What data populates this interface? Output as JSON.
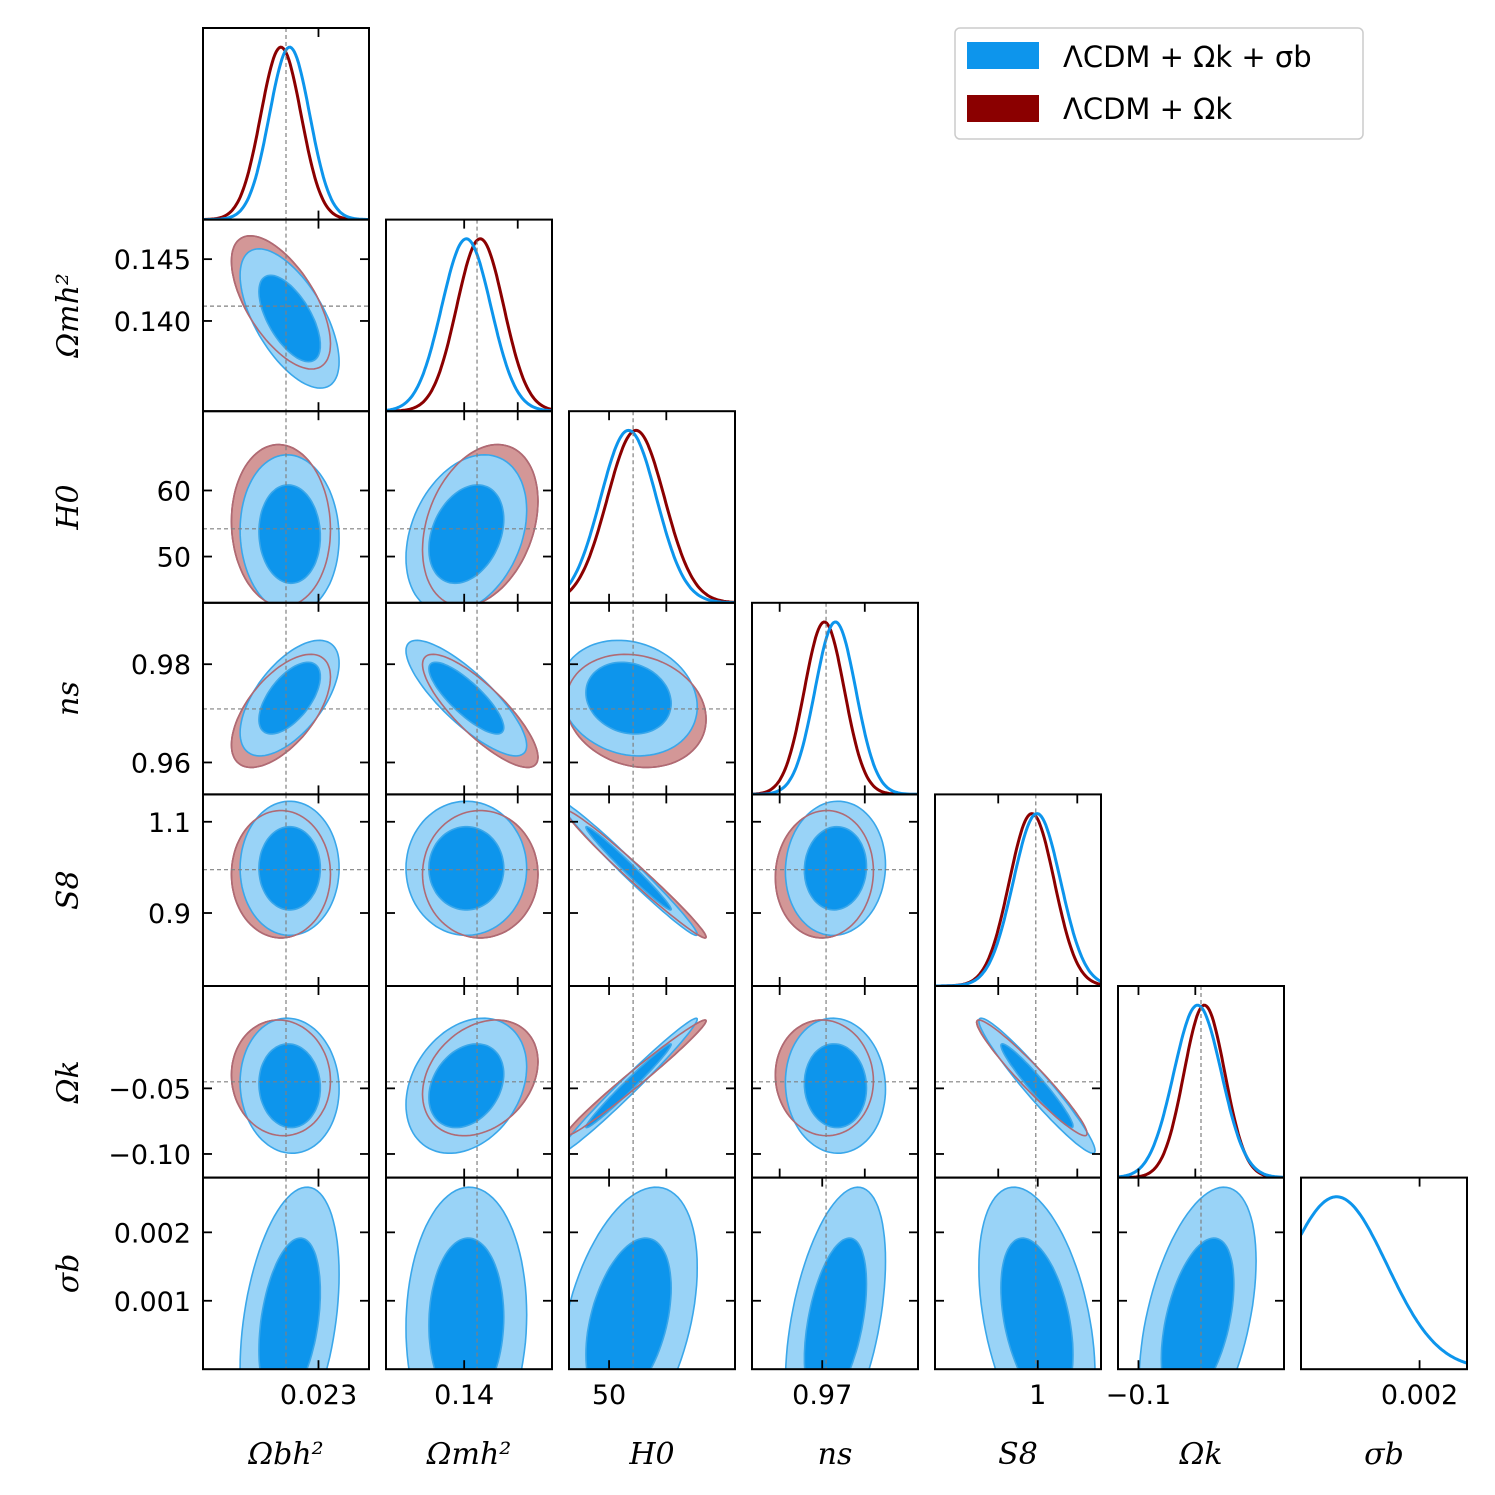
{
  "chart_data": {
    "type": "corner-plot",
    "title": "",
    "parameters": [
      {
        "id": "omegab",
        "label": "Ωbh²",
        "truth": 0.02255,
        "range": [
          0.0214,
          0.0237
        ],
        "ticks": [
          {
            "v": 0.023,
            "t": "0.023"
          }
        ]
      },
      {
        "id": "omegam",
        "label": "Ωmh²",
        "truth": 0.1412,
        "range": [
          0.1327,
          0.1482
        ],
        "ticks": [
          {
            "v": 0.14,
            "t": "0.140"
          },
          {
            "v": 0.145,
            "t": "0.145"
          }
        ],
        "bottom_ticks": [
          {
            "v": 0.14,
            "t": "0.14"
          }
        ]
      },
      {
        "id": "h0",
        "label": "H0",
        "truth": 54.2,
        "range": [
          43.0,
          72.0
        ],
        "ticks": [
          {
            "v": 50,
            "t": "50"
          },
          {
            "v": 60,
            "t": "60"
          }
        ],
        "bottom_ticks": [
          {
            "v": 50,
            "t": "50"
          }
        ]
      },
      {
        "id": "ns",
        "label": "ns",
        "truth": 0.9709,
        "range": [
          0.9535,
          0.9925
        ],
        "ticks": [
          {
            "v": 0.96,
            "t": "0.96"
          },
          {
            "v": 0.98,
            "t": "0.98"
          }
        ],
        "bottom_ticks": [
          {
            "v": 0.97,
            "t": "0.97"
          }
        ]
      },
      {
        "id": "s8",
        "label": "S8",
        "truth": 0.995,
        "range": [
          0.74,
          1.16
        ],
        "ticks": [
          {
            "v": 0.9,
            "t": "0.9"
          },
          {
            "v": 1.1,
            "t": "1.1"
          }
        ],
        "bottom_ticks": [
          {
            "v": 1.0,
            "t": "1"
          }
        ]
      },
      {
        "id": "omegak",
        "label": "Ωk",
        "truth": -0.045,
        "range": [
          -0.118,
          0.028
        ],
        "ticks": [
          {
            "v": -0.1,
            "t": "−0.10"
          },
          {
            "v": -0.05,
            "t": "−0.05"
          }
        ],
        "bottom_ticks": [
          {
            "v": -0.1,
            "t": "−0.1"
          }
        ]
      },
      {
        "id": "sigmab",
        "label": "σb",
        "truth": null,
        "range": [
          0.0,
          0.0028
        ],
        "ticks": [
          {
            "v": 0.001,
            "t": "0.001"
          },
          {
            "v": 0.002,
            "t": "0.002"
          }
        ],
        "bottom_ticks": [
          {
            "v": 0.002,
            "t": "0.002"
          }
        ]
      }
    ],
    "series": [
      {
        "name": "ΛCDM + Ωk + σb",
        "color": "#0d95ec",
        "fill_inner": "#0d95ec",
        "fill_outer": "#99d3f7",
        "means": [
          0.0226,
          0.1402,
          53.4,
          0.9731,
          0.998,
          -0.048,
          0.0007
        ],
        "sigmas": [
          0.00028,
          0.0023,
          4.9,
          0.0048,
          0.06,
          0.021,
          0.0008
        ]
      },
      {
        "name": "ΛCDM + Ωk",
        "color": "#8b0000",
        "fill_inner": "#8b0000",
        "fill_outer": "#d39797",
        "means": [
          0.02248,
          0.1415,
          54.7,
          0.9705,
          0.985,
          -0.042,
          null
        ],
        "sigmas": [
          0.00028,
          0.0022,
          5.0,
          0.0047,
          0.057,
          0.018,
          null
        ]
      }
    ],
    "legend": {
      "placement": "top-right",
      "entries": [
        "ΛCDM + Ωk + σb",
        "ΛCDM + Ωk"
      ]
    }
  }
}
